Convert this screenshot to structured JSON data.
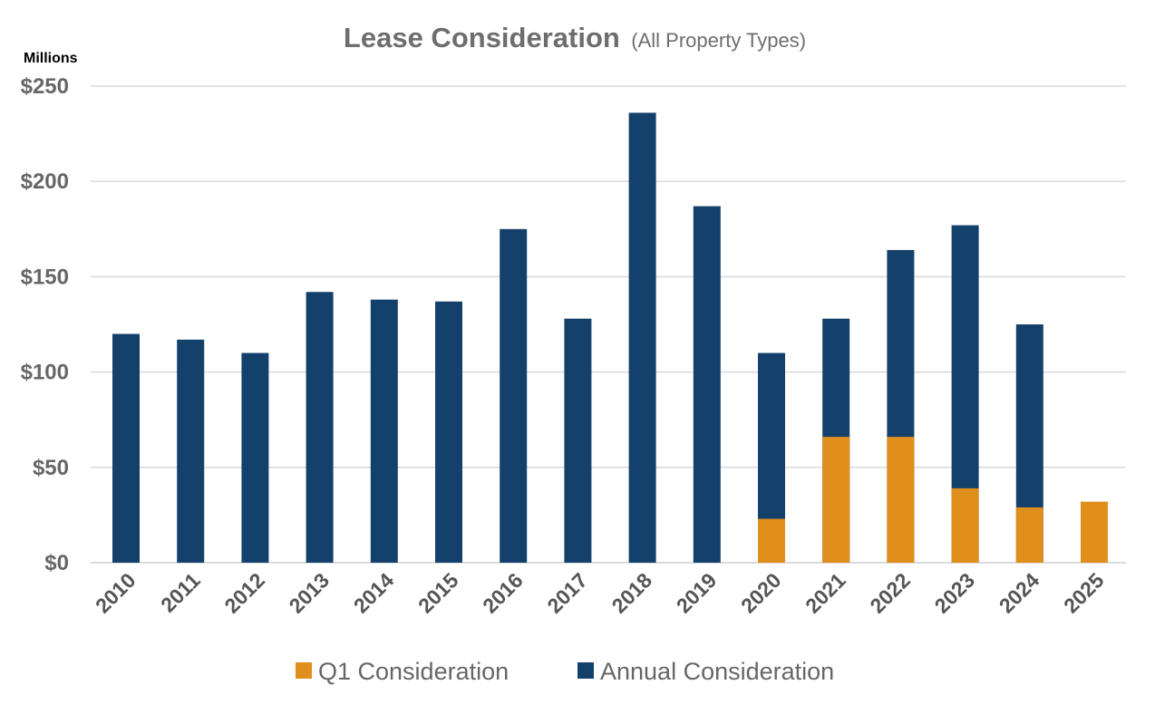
{
  "chart_data": {
    "type": "bar",
    "title": "Lease Consideration",
    "subtitle": "(All Property Types)",
    "units_label": "Millions",
    "categories": [
      "2010",
      "2011",
      "2012",
      "2013",
      "2014",
      "2015",
      "2016",
      "2017",
      "2018",
      "2019",
      "2020",
      "2021",
      "2022",
      "2023",
      "2024",
      "2025"
    ],
    "series": [
      {
        "name": "Annual Consideration",
        "color": "#14416b",
        "values": [
          120,
          117,
          110,
          142,
          138,
          137,
          175,
          128,
          236,
          187,
          110,
          128,
          164,
          177,
          125,
          null
        ]
      },
      {
        "name": "Q1 Consideration",
        "color": "#e08e1c",
        "values": [
          null,
          null,
          null,
          null,
          null,
          null,
          null,
          null,
          null,
          null,
          23,
          66,
          66,
          39,
          29,
          32
        ]
      }
    ],
    "overlay": "Q1 Consideration drawn in front of Annual Consideration within the same column",
    "ylim": [
      0,
      250
    ],
    "yticks": [
      0,
      50,
      100,
      150,
      200,
      250
    ],
    "ytick_labels": [
      "$0",
      "$50",
      "$100",
      "$150",
      "$200",
      "$250"
    ],
    "grid": true,
    "legend": {
      "placement": "bottom",
      "entries": [
        "Q1 Consideration",
        "Annual Consideration"
      ]
    }
  }
}
